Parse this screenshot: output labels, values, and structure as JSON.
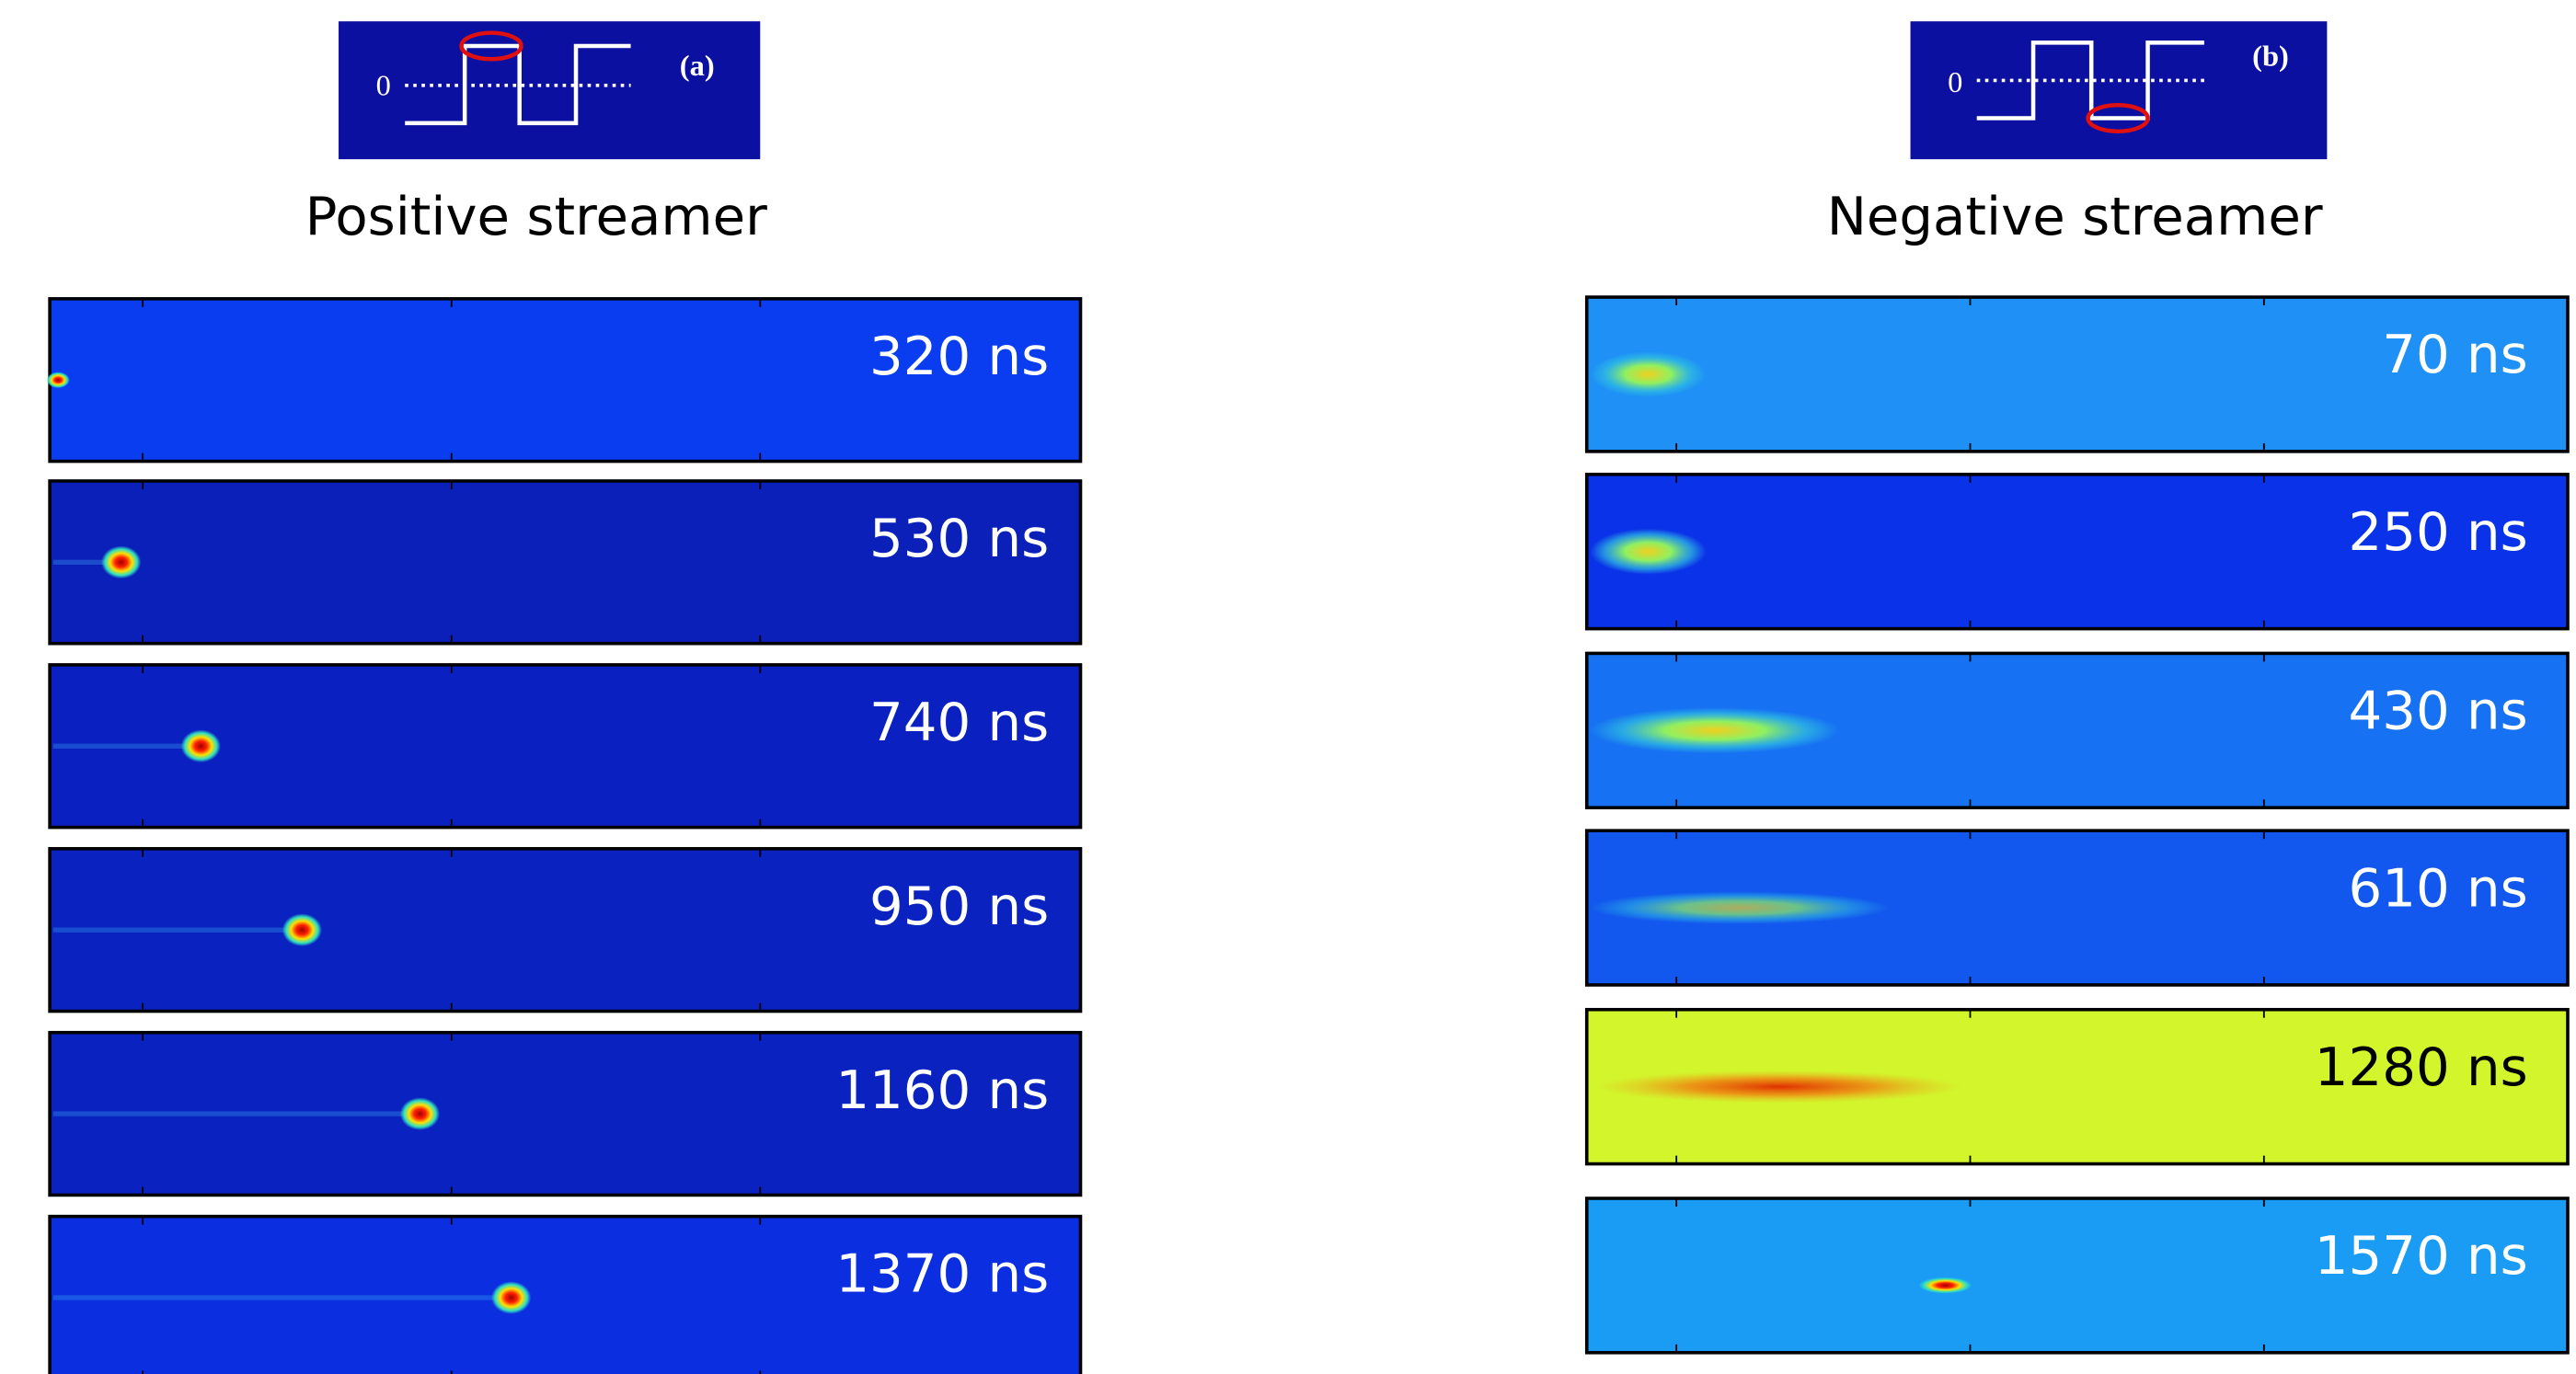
{
  "panels": [
    {
      "inset": {
        "zero": "0",
        "label": "(a)"
      },
      "title": "Positive streamer",
      "frames": [
        {
          "time": "320 ns"
        },
        {
          "time": "530 ns"
        },
        {
          "time": "740 ns"
        },
        {
          "time": "950 ns"
        },
        {
          "time": "1160 ns"
        },
        {
          "time": "1370 ns"
        }
      ]
    },
    {
      "inset": {
        "zero": "0",
        "label": "(b)"
      },
      "title": "Negative streamer",
      "frames": [
        {
          "time": "70 ns"
        },
        {
          "time": "250 ns"
        },
        {
          "time": "430 ns"
        },
        {
          "time": "610 ns"
        },
        {
          "time": "1280 ns"
        },
        {
          "time": "1570 ns"
        }
      ]
    }
  ]
}
